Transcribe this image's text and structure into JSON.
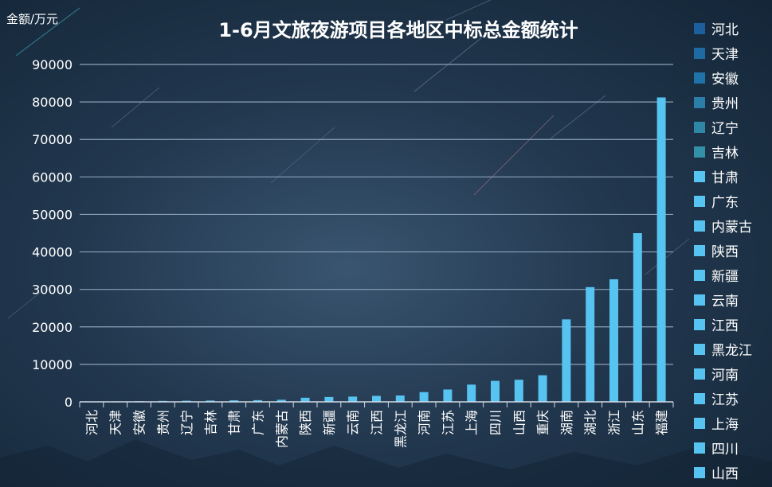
{
  "chart_data": {
    "type": "bar",
    "title": "1-6月文旅夜游项目各地区中标总金额统计",
    "ylabel": "金额/万元",
    "xlabel": "",
    "ylim": [
      0,
      90000
    ],
    "yticks": [
      0,
      10000,
      20000,
      30000,
      40000,
      50000,
      60000,
      70000,
      80000,
      90000
    ],
    "grid": true,
    "legend_position": "right",
    "categories": [
      "河北",
      "天津",
      "安徽",
      "贵州",
      "辽宁",
      "吉林",
      "甘肃",
      "广东",
      "内蒙古",
      "陕西",
      "新疆",
      "云南",
      "江西",
      "黑龙江",
      "河南",
      "江苏",
      "上海",
      "四川",
      "山西",
      "重庆",
      "湖南",
      "湖北",
      "浙江",
      "山东",
      "福建"
    ],
    "values": [
      80,
      120,
      180,
      250,
      300,
      350,
      400,
      450,
      550,
      1100,
      1300,
      1400,
      1600,
      1700,
      2600,
      3300,
      4600,
      5600,
      5900,
      7100,
      22000,
      30600,
      32700,
      45000,
      81200
    ],
    "legend": [
      "河北",
      "天津",
      "安徽",
      "贵州",
      "辽宁",
      "吉林",
      "甘肃",
      "广东",
      "内蒙古",
      "陕西",
      "新疆",
      "云南",
      "江西",
      "黑龙江",
      "河南",
      "江苏",
      "上海",
      "四川",
      "山西"
    ],
    "colors": {
      "bar": "#56c3f0",
      "legend_dark": [
        "#1c5f9c",
        "#1e6aa3",
        "#2073a8",
        "#2a7ea8",
        "#2f87a8",
        "#3390a8"
      ],
      "legend_light": "#56c3f0",
      "grid": "#8aa2b8",
      "axis": "#cfd9e3"
    }
  }
}
